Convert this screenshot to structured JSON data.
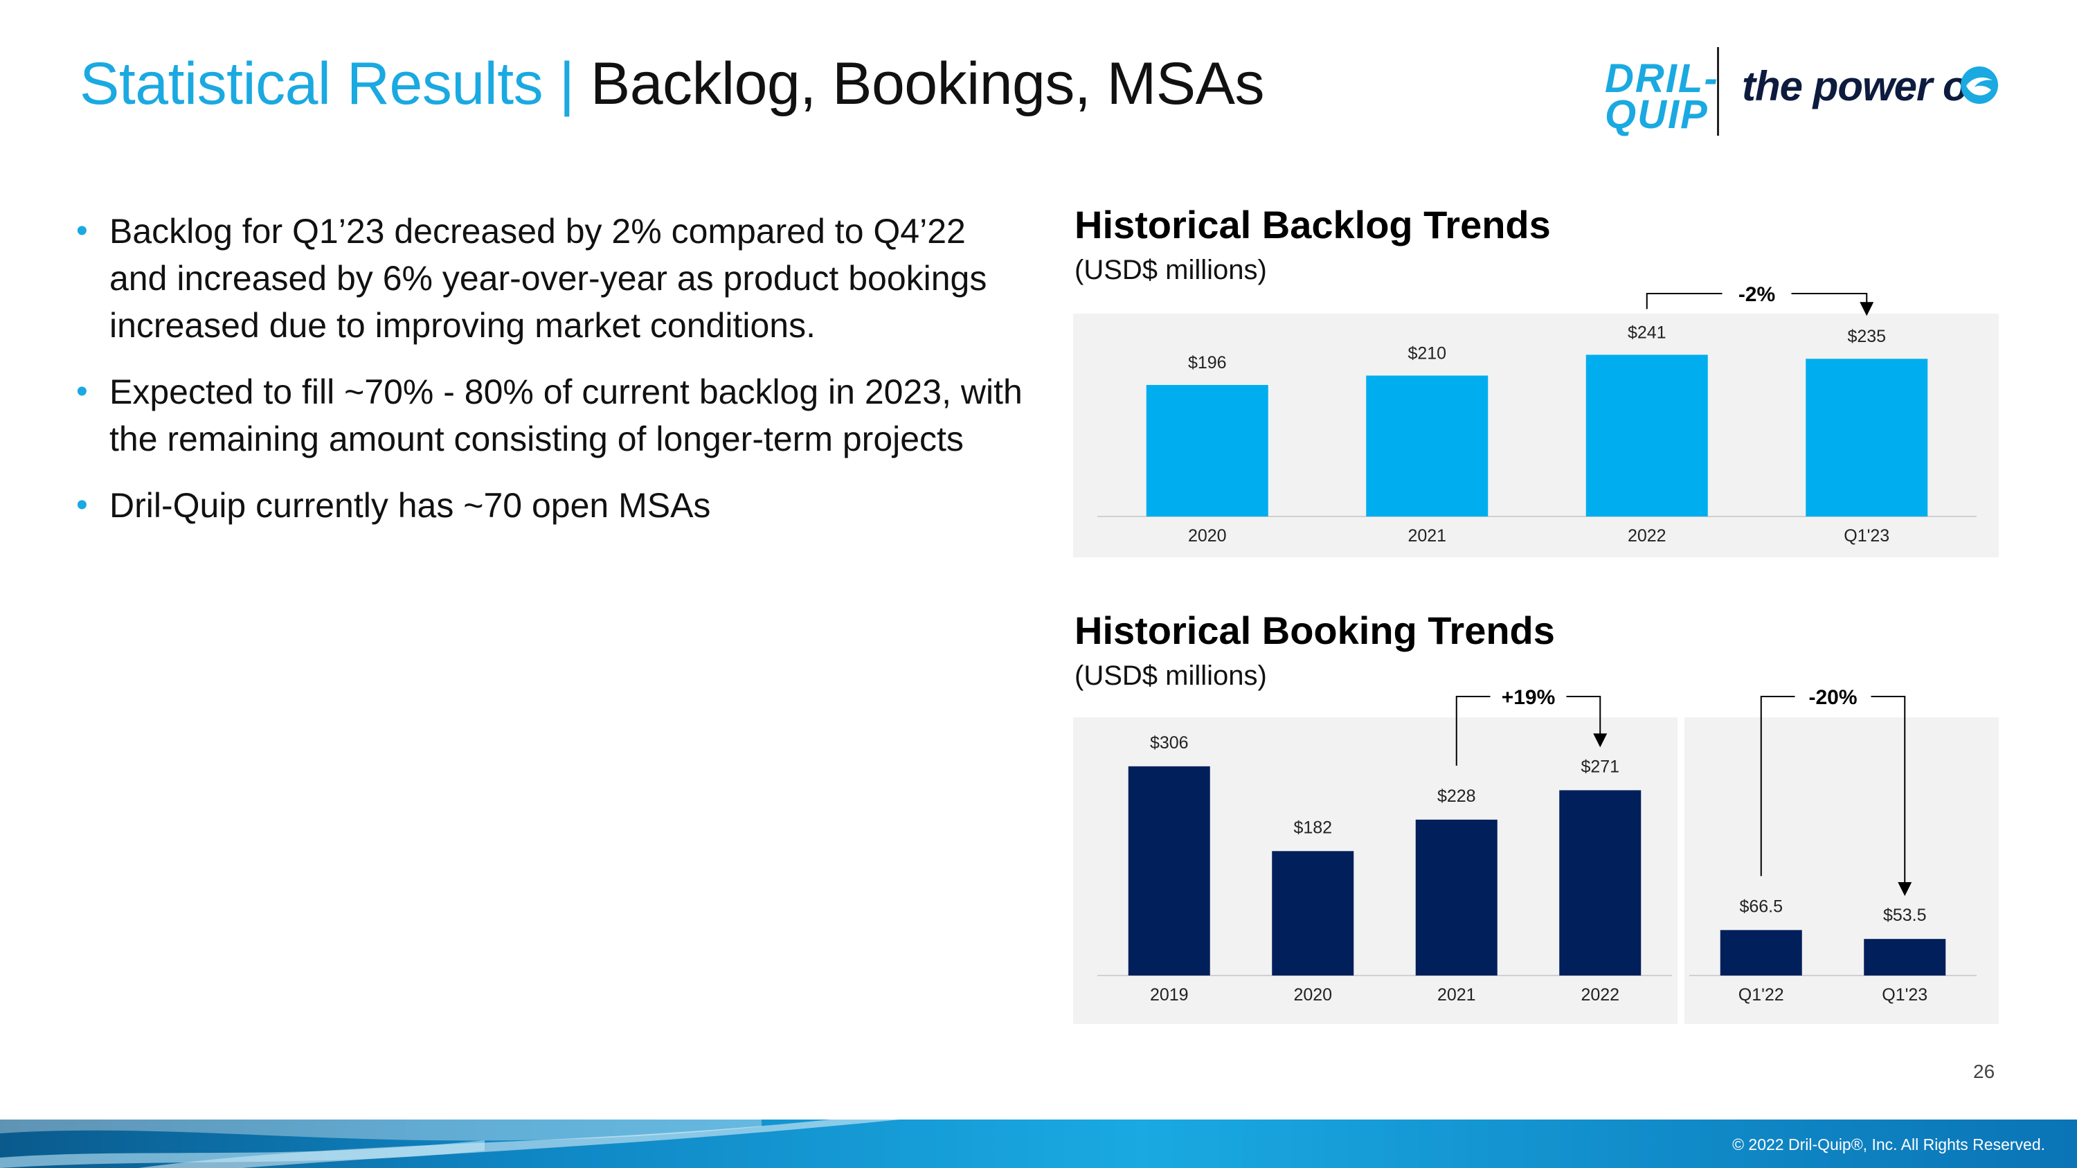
{
  "header": {
    "title_main": "Statistical Results",
    "title_separator": "|",
    "title_rest": "Backlog, Bookings, MSAs"
  },
  "logo": {
    "brand_line1": "DRIL-",
    "brand_line2": "QUIP",
    "tagline": "the power of"
  },
  "bullets": [
    "Backlog for Q1’23 decreased by 2% compared to Q4’22 and increased by 6% year-over-year as product bookings increased due to improving market conditions.",
    "Expected to fill ~70% - 80% of current backlog in 2023, with the remaining amount consisting of longer-term projects",
    "Dril-Quip currently has ~70 open MSAs"
  ],
  "chart_data": [
    {
      "type": "bar",
      "title": "Historical Backlog Trends",
      "subtitle": "(USD$ millions)",
      "categories": [
        "2020",
        "2021",
        "2022",
        "Q1'23"
      ],
      "values": [
        196,
        210,
        241,
        235
      ],
      "labels": [
        "$196",
        "$210",
        "$241",
        "$235"
      ],
      "color": "#00aeef",
      "annotation": {
        "text": "-2%",
        "from": "2022",
        "to": "Q1'23"
      },
      "ylim": [
        0,
        260
      ]
    },
    {
      "type": "bar",
      "title": "Historical Booking Trends",
      "subtitle": "(USD$ millions)",
      "categories": [
        "2019",
        "2020",
        "2021",
        "2022",
        "Q1'22",
        "Q1'23"
      ],
      "values": [
        306,
        182,
        228,
        271,
        66.5,
        53.5
      ],
      "labels": [
        "$306",
        "$182",
        "$228",
        "$271",
        "$66.5",
        "$53.5"
      ],
      "color": "#001f5b",
      "annotations": [
        {
          "text": "+19%",
          "from": "2021",
          "to": "2022"
        },
        {
          "text": "-20%",
          "from": "Q1'22",
          "to": "Q1'23"
        }
      ],
      "ylim": [
        0,
        320
      ]
    }
  ],
  "footer": {
    "page_number": "26",
    "copyright": "© 2022 Dril-Quip®, Inc. All Rights Reserved."
  },
  "colors": {
    "accent": "#1aa9e1",
    "backlog_bar": "#00aeef",
    "booking_bar": "#001f5b",
    "panel_bg": "#f2f2f2"
  }
}
